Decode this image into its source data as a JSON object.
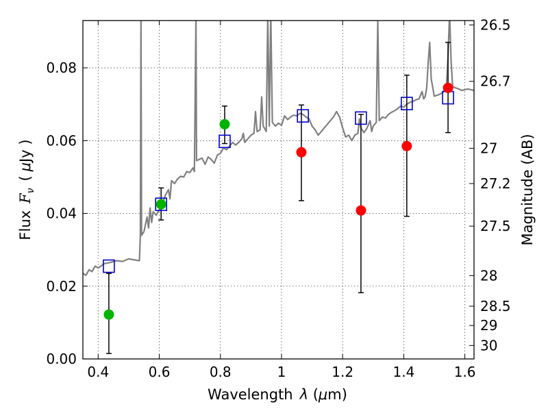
{
  "chart_data": {
    "type": "scatter",
    "xlabel_prefix": "Wavelength",
    "xlabel_symbol": "λ",
    "xlabel_unit_open": " (",
    "xlabel_unit_mu": "μ",
    "xlabel_unit_rest": "m)",
    "ylabel_prefix": "Flux",
    "ylabel_symbol": "F",
    "ylabel_subscript": "ν",
    "ylabel_unit_open": "(",
    "ylabel_unit_mu": "μ",
    "ylabel_unit_rest": "Jy )",
    "y2label": "Magnitude (AB)",
    "xlim": [
      0.35,
      1.63
    ],
    "ylim": [
      0.0,
      0.093
    ],
    "x_ticks": [
      0.4,
      0.6,
      0.8,
      1.0,
      1.2,
      1.4,
      1.6
    ],
    "x_tick_labels": [
      "0.4",
      "0.6",
      "0.8",
      "1",
      "1.2",
      "1.4",
      "1.6"
    ],
    "y_ticks": [
      0.0,
      0.02,
      0.04,
      0.06,
      0.08
    ],
    "y_tick_labels": [
      "0.00",
      "0.02",
      "0.04",
      "0.06",
      "0.08"
    ],
    "mag_ticks": [
      {
        "label": "26.5",
        "flux": 0.0918
      },
      {
        "label": "26.7",
        "flux": 0.0763
      },
      {
        "label": "27",
        "flux": 0.0579
      },
      {
        "label": "27.2",
        "flux": 0.0482
      },
      {
        "label": "27.5",
        "flux": 0.0365
      },
      {
        "label": "28",
        "flux": 0.0229
      },
      {
        "label": "28.5",
        "flux": 0.0145
      },
      {
        "label": "29",
        "flux": 0.0092
      },
      {
        "label": "30",
        "flux": 0.0037
      }
    ],
    "grid": true,
    "colors": {
      "spectrum": "#808080",
      "model_box": "#0000cc",
      "green": "#00b400",
      "red": "#ff0000",
      "errorbar": "#000000"
    },
    "green_points": [
      {
        "x": 0.435,
        "y": 0.0122,
        "lo": 0.0015,
        "hi": 0.0235
      },
      {
        "x": 0.606,
        "y": 0.0425,
        "lo": 0.0382,
        "hi": 0.047
      },
      {
        "x": 0.814,
        "y": 0.0645,
        "lo": 0.0592,
        "hi": 0.0695
      }
    ],
    "red_points": [
      {
        "x": 1.065,
        "y": 0.0568,
        "lo": 0.0435,
        "hi": 0.0698
      },
      {
        "x": 1.26,
        "y": 0.0408,
        "lo": 0.0182,
        "hi": 0.0672
      },
      {
        "x": 1.41,
        "y": 0.0585,
        "lo": 0.0392,
        "hi": 0.078
      },
      {
        "x": 1.545,
        "y": 0.0745,
        "lo": 0.0622,
        "hi": 0.087
      }
    ],
    "model_boxes": [
      {
        "x": 0.435,
        "y": 0.0255
      },
      {
        "x": 0.606,
        "y": 0.0425
      },
      {
        "x": 0.814,
        "y": 0.0598
      },
      {
        "x": 1.07,
        "y": 0.0668
      },
      {
        "x": 1.26,
        "y": 0.0662
      },
      {
        "x": 1.41,
        "y": 0.0702
      },
      {
        "x": 1.545,
        "y": 0.0718
      }
    ],
    "spectrum": [
      [
        0.35,
        0.0235
      ],
      [
        0.36,
        0.023
      ],
      [
        0.37,
        0.0245
      ],
      [
        0.38,
        0.024
      ],
      [
        0.39,
        0.0255
      ],
      [
        0.4,
        0.025
      ],
      [
        0.42,
        0.0262
      ],
      [
        0.44,
        0.0265
      ],
      [
        0.46,
        0.027
      ],
      [
        0.48,
        0.0268
      ],
      [
        0.5,
        0.0275
      ],
      [
        0.52,
        0.0272
      ],
      [
        0.535,
        0.027
      ],
      [
        0.538,
        0.034
      ],
      [
        0.54,
        0.095
      ],
      [
        0.542,
        0.034
      ],
      [
        0.55,
        0.035
      ],
      [
        0.56,
        0.039
      ],
      [
        0.565,
        0.036
      ],
      [
        0.57,
        0.0415
      ],
      [
        0.575,
        0.0375
      ],
      [
        0.58,
        0.0405
      ],
      [
        0.59,
        0.0395
      ],
      [
        0.6,
        0.041
      ],
      [
        0.61,
        0.0425
      ],
      [
        0.62,
        0.045
      ],
      [
        0.63,
        0.0465
      ],
      [
        0.635,
        0.044
      ],
      [
        0.64,
        0.049
      ],
      [
        0.65,
        0.0482
      ],
      [
        0.66,
        0.0495
      ],
      [
        0.67,
        0.0502
      ],
      [
        0.68,
        0.05
      ],
      [
        0.69,
        0.0515
      ],
      [
        0.7,
        0.0512
      ],
      [
        0.71,
        0.0525
      ],
      [
        0.715,
        0.0515
      ],
      [
        0.72,
        0.095
      ],
      [
        0.722,
        0.0545
      ],
      [
        0.73,
        0.0548
      ],
      [
        0.74,
        0.0552
      ],
      [
        0.75,
        0.0535
      ],
      [
        0.76,
        0.0555
      ],
      [
        0.77,
        0.0548
      ],
      [
        0.78,
        0.0538
      ],
      [
        0.79,
        0.056
      ],
      [
        0.8,
        0.0565
      ],
      [
        0.81,
        0.058
      ],
      [
        0.82,
        0.0575
      ],
      [
        0.83,
        0.0585
      ],
      [
        0.84,
        0.0595
      ],
      [
        0.85,
        0.0588
      ],
      [
        0.86,
        0.0595
      ],
      [
        0.87,
        0.0605
      ],
      [
        0.875,
        0.062
      ],
      [
        0.88,
        0.0595
      ],
      [
        0.89,
        0.0605
      ],
      [
        0.9,
        0.0615
      ],
      [
        0.91,
        0.062
      ],
      [
        0.915,
        0.068
      ],
      [
        0.92,
        0.0625
      ],
      [
        0.93,
        0.063
      ],
      [
        0.935,
        0.072
      ],
      [
        0.94,
        0.064
      ],
      [
        0.95,
        0.0625
      ],
      [
        0.955,
        0.095
      ],
      [
        0.96,
        0.064
      ],
      [
        0.965,
        0.095
      ],
      [
        0.97,
        0.065
      ],
      [
        0.98,
        0.064
      ],
      [
        0.99,
        0.0648
      ],
      [
        1.0,
        0.0642
      ],
      [
        1.01,
        0.0668
      ],
      [
        1.02,
        0.0658
      ],
      [
        1.03,
        0.0665
      ],
      [
        1.04,
        0.067
      ],
      [
        1.05,
        0.0668
      ],
      [
        1.06,
        0.0675
      ],
      [
        1.07,
        0.0672
      ],
      [
        1.08,
        0.0665
      ],
      [
        1.09,
        0.066
      ],
      [
        1.1,
        0.064
      ],
      [
        1.11,
        0.063
      ],
      [
        1.12,
        0.0615
      ],
      [
        1.13,
        0.0625
      ],
      [
        1.14,
        0.0635
      ],
      [
        1.15,
        0.0645
      ],
      [
        1.16,
        0.0655
      ],
      [
        1.17,
        0.0665
      ],
      [
        1.18,
        0.068
      ],
      [
        1.19,
        0.0665
      ],
      [
        1.2,
        0.0635
      ],
      [
        1.21,
        0.061
      ],
      [
        1.22,
        0.0615
      ],
      [
        1.23,
        0.06
      ],
      [
        1.24,
        0.0615
      ],
      [
        1.25,
        0.062
      ],
      [
        1.255,
        0.066
      ],
      [
        1.26,
        0.0635
      ],
      [
        1.27,
        0.0622
      ],
      [
        1.28,
        0.0635
      ],
      [
        1.29,
        0.0655
      ],
      [
        1.295,
        0.0625
      ],
      [
        1.3,
        0.064
      ],
      [
        1.31,
        0.065
      ],
      [
        1.315,
        0.093
      ],
      [
        1.32,
        0.0655
      ],
      [
        1.33,
        0.0665
      ],
      [
        1.34,
        0.0662
      ],
      [
        1.35,
        0.0672
      ],
      [
        1.36,
        0.0678
      ],
      [
        1.37,
        0.0682
      ],
      [
        1.38,
        0.0688
      ],
      [
        1.39,
        0.0695
      ],
      [
        1.4,
        0.0692
      ],
      [
        1.41,
        0.07
      ],
      [
        1.42,
        0.0705
      ],
      [
        1.43,
        0.0708
      ],
      [
        1.44,
        0.0712
      ],
      [
        1.45,
        0.0715
      ],
      [
        1.46,
        0.0735
      ],
      [
        1.465,
        0.0715
      ],
      [
        1.47,
        0.072
      ],
      [
        1.475,
        0.0745
      ],
      [
        1.48,
        0.0815
      ],
      [
        1.485,
        0.087
      ],
      [
        1.49,
        0.077
      ],
      [
        1.5,
        0.0722
      ],
      [
        1.51,
        0.0725
      ],
      [
        1.52,
        0.0728
      ],
      [
        1.53,
        0.0735
      ],
      [
        1.54,
        0.0755
      ],
      [
        1.545,
        0.0835
      ],
      [
        1.55,
        0.095
      ],
      [
        1.555,
        0.082
      ],
      [
        1.56,
        0.0748
      ],
      [
        1.57,
        0.0745
      ],
      [
        1.58,
        0.0742
      ],
      [
        1.59,
        0.0738
      ],
      [
        1.6,
        0.074
      ],
      [
        1.61,
        0.0742
      ],
      [
        1.62,
        0.074
      ],
      [
        1.63,
        0.0738
      ]
    ]
  }
}
